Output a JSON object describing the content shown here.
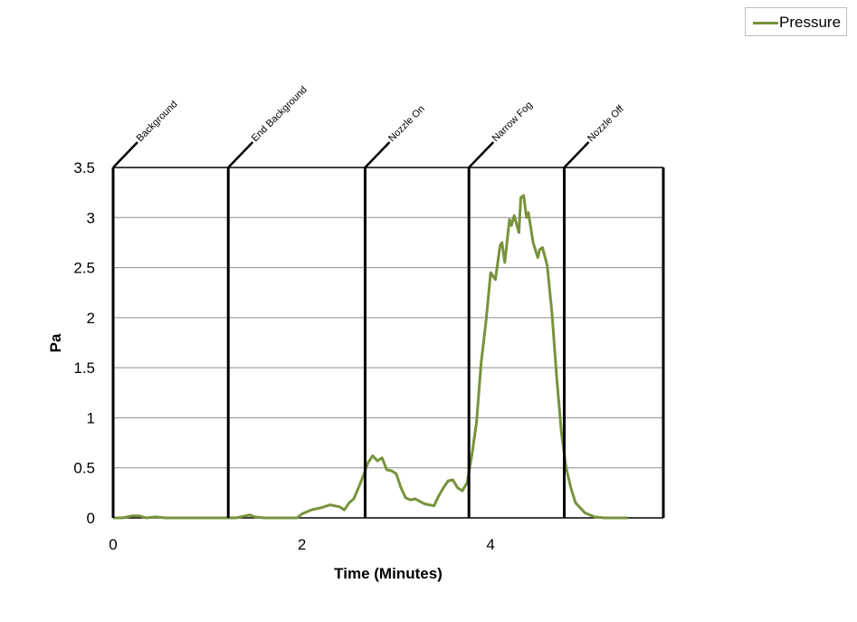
{
  "legend": {
    "label": "Pressure",
    "color": "#77933c"
  },
  "chart_data": {
    "type": "line",
    "title": "",
    "xlabel": "Time (Minutes)",
    "ylabel": "Pa",
    "xlim": [
      0,
      5.83
    ],
    "ylim": [
      0,
      3.5
    ],
    "x_ticks": [
      0,
      2,
      4
    ],
    "y_ticks": [
      0,
      0.5,
      1,
      1.5,
      2,
      2.5,
      3,
      3.5
    ],
    "grid": true,
    "legend_position": "top-right",
    "series": [
      {
        "name": "Pressure",
        "color": "#77933c",
        "x": [
          0,
          0.1,
          0.2,
          0.28,
          0.35,
          0.45,
          0.55,
          0.65,
          0.7,
          1.3,
          1.4,
          1.45,
          1.5,
          1.6,
          1.95,
          2.0,
          2.1,
          2.2,
          2.3,
          2.4,
          2.45,
          2.5,
          2.55,
          2.6,
          2.65,
          2.7,
          2.75,
          2.8,
          2.85,
          2.9,
          2.95,
          3.0,
          3.05,
          3.1,
          3.15,
          3.2,
          3.3,
          3.4,
          3.45,
          3.5,
          3.55,
          3.6,
          3.65,
          3.7,
          3.75,
          3.8,
          3.85,
          3.9,
          3.95,
          4.0,
          4.05,
          4.1,
          4.12,
          4.15,
          4.2,
          4.22,
          4.25,
          4.3,
          4.32,
          4.35,
          4.38,
          4.4,
          4.45,
          4.5,
          4.52,
          4.55,
          4.6,
          4.65,
          4.7,
          4.75,
          4.8,
          4.85,
          4.9,
          5.0,
          5.1,
          5.2,
          5.3,
          5.4,
          5.45
        ],
        "values": [
          0,
          0,
          0.02,
          0.02,
          0.0,
          0.01,
          0.0,
          0.0,
          0,
          0,
          0.02,
          0.03,
          0.01,
          0,
          0,
          0.04,
          0.08,
          0.1,
          0.13,
          0.11,
          0.08,
          0.15,
          0.19,
          0.3,
          0.42,
          0.55,
          0.62,
          0.57,
          0.6,
          0.48,
          0.47,
          0.44,
          0.3,
          0.2,
          0.18,
          0.19,
          0.14,
          0.12,
          0.22,
          0.3,
          0.37,
          0.38,
          0.3,
          0.27,
          0.35,
          0.62,
          0.95,
          1.55,
          1.95,
          2.45,
          2.38,
          2.72,
          2.75,
          2.55,
          2.98,
          2.92,
          3.02,
          2.85,
          3.2,
          3.22,
          3.0,
          3.05,
          2.75,
          2.6,
          2.68,
          2.7,
          2.52,
          2.05,
          1.4,
          0.85,
          0.5,
          0.3,
          0.15,
          0.05,
          0.01,
          0,
          0,
          0,
          0
        ]
      }
    ],
    "events": [
      {
        "x": 0.0,
        "label": "Background"
      },
      {
        "x": 1.22,
        "label": "End Background"
      },
      {
        "x": 2.67,
        "label": "Nozzle On"
      },
      {
        "x": 3.77,
        "label": "Narrow Fog"
      },
      {
        "x": 4.78,
        "label": "Nozzle Off"
      }
    ]
  }
}
